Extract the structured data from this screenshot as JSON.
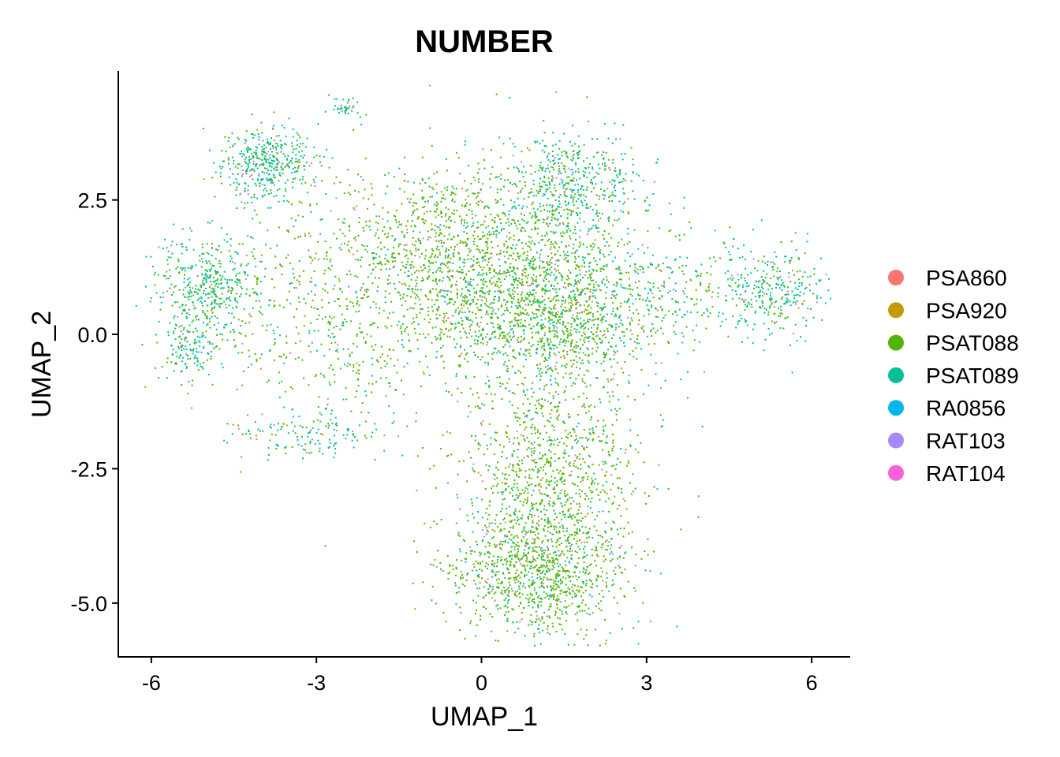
{
  "chart_data": {
    "type": "scatter",
    "title": "NUMBER",
    "xlabel": "UMAP_1",
    "ylabel": "UMAP_2",
    "xlim": [
      -6.6,
      6.7
    ],
    "ylim": [
      -6.0,
      4.9
    ],
    "x_ticks": [
      {
        "value": -6,
        "label": "-6"
      },
      {
        "value": -3,
        "label": "-3"
      },
      {
        "value": 0,
        "label": "0"
      },
      {
        "value": 3,
        "label": "3"
      },
      {
        "value": 6,
        "label": "6"
      }
    ],
    "y_ticks": [
      {
        "value": 2.5,
        "label": "2.5"
      },
      {
        "value": 0.0,
        "label": "0.0"
      },
      {
        "value": -2.5,
        "label": "-2.5"
      },
      {
        "value": -5.0,
        "label": "-5.0"
      }
    ],
    "grid": false,
    "legend_position": "right",
    "point_size": "tiny",
    "series": [
      {
        "name": "PSA860",
        "color": "#F8766D",
        "weight": 0.02
      },
      {
        "name": "PSA920",
        "color": "#C49A00",
        "weight": 0.04
      },
      {
        "name": "PSAT088",
        "color": "#53B400",
        "weight": 0.56
      },
      {
        "name": "PSAT089",
        "color": "#00C094",
        "weight": 0.3
      },
      {
        "name": "RA0856",
        "color": "#00B6EB",
        "weight": 0.03
      },
      {
        "name": "RAT103",
        "color": "#A58AFF",
        "weight": 0.02
      },
      {
        "name": "RAT104",
        "color": "#FB61D7",
        "weight": 0.03
      }
    ],
    "clusters": [
      {
        "region": "top-left",
        "cx": -3.9,
        "cy": 3.2,
        "sx": 0.45,
        "sy": 0.35,
        "n": 420,
        "teal": 0.75
      },
      {
        "region": "top-left-tip",
        "cx": -2.5,
        "cy": 4.2,
        "sx": 0.15,
        "sy": 0.08,
        "n": 40,
        "teal": 0.9
      },
      {
        "region": "left",
        "cx": -5.0,
        "cy": 0.9,
        "sx": 0.45,
        "sy": 0.45,
        "n": 420,
        "teal": 0.7
      },
      {
        "region": "left-lower",
        "cx": -5.3,
        "cy": -0.3,
        "sx": 0.25,
        "sy": 0.25,
        "n": 120,
        "teal": 0.8
      },
      {
        "region": "center-upper",
        "cx": -0.2,
        "cy": 1.6,
        "sx": 1.3,
        "sy": 0.8,
        "n": 1200,
        "teal": 0.2
      },
      {
        "region": "center",
        "cx": 1.2,
        "cy": 0.4,
        "sx": 1.1,
        "sy": 0.7,
        "n": 1500,
        "teal": 0.35
      },
      {
        "region": "top-right",
        "cx": 1.7,
        "cy": 2.8,
        "sx": 0.6,
        "sy": 0.45,
        "n": 450,
        "teal": 0.7
      },
      {
        "region": "right",
        "cx": 5.3,
        "cy": 0.8,
        "sx": 0.5,
        "sy": 0.4,
        "n": 300,
        "teal": 0.75
      },
      {
        "region": "right-bridge",
        "cx": 3.6,
        "cy": 0.8,
        "sx": 0.8,
        "sy": 0.5,
        "n": 180,
        "teal": 0.6
      },
      {
        "region": "mid-left",
        "cx": -2.8,
        "cy": 0.2,
        "sx": 1.2,
        "sy": 1.0,
        "n": 550,
        "teal": 0.25
      },
      {
        "region": "bottom-left-arc",
        "cx": -3.2,
        "cy": -1.9,
        "sx": 0.8,
        "sy": 0.2,
        "n": 130,
        "teal": 0.7
      },
      {
        "region": "lower",
        "cx": 1.3,
        "cy": -2.5,
        "sx": 0.8,
        "sy": 0.9,
        "n": 900,
        "teal": 0.15
      },
      {
        "region": "bottom",
        "cx": 1.0,
        "cy": -4.4,
        "sx": 0.8,
        "sy": 0.6,
        "n": 1100,
        "teal": 0.25
      }
    ]
  }
}
